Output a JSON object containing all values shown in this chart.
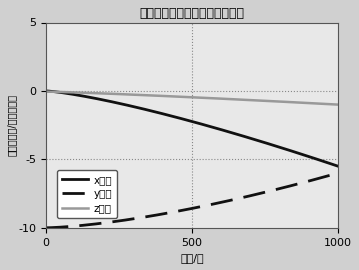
{
  "title": "引力加速度在发射坐标系的投影",
  "xlabel": "时间/秒",
  "ylabel": "引力加速度/米每平方秒",
  "xlim": [
    0,
    1000
  ],
  "ylim": [
    -10,
    5
  ],
  "xticks": [
    0,
    500,
    1000
  ],
  "yticks": [
    -10,
    -5,
    0,
    5
  ],
  "legend_labels": [
    "x方向",
    "y方向",
    "z方向"
  ],
  "bg_color": "#d0d0d0",
  "plot_bg_color": "#e8e8e8",
  "x_color": "#111111",
  "y_color": "#111111",
  "z_color": "#999999",
  "dotted_color": "#888888"
}
